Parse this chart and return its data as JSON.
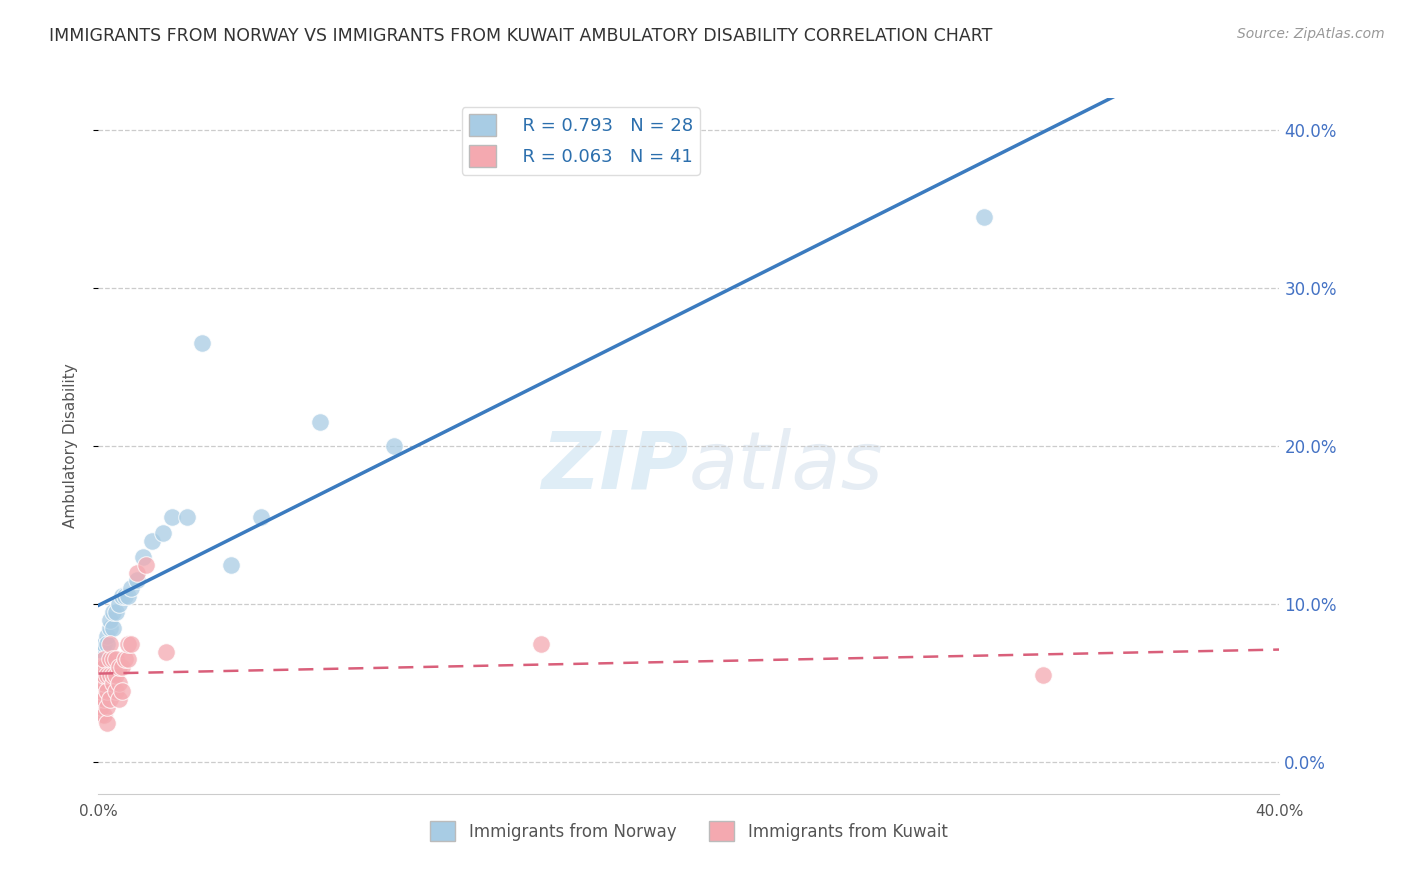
{
  "title": "IMMIGRANTS FROM NORWAY VS IMMIGRANTS FROM KUWAIT AMBULATORY DISABILITY CORRELATION CHART",
  "source": "Source: ZipAtlas.com",
  "xlabel_bottom": [
    "Immigrants from Norway",
    "Immigrants from Kuwait"
  ],
  "ylabel": "Ambulatory Disability",
  "xlim": [
    0.0,
    0.4
  ],
  "ylim": [
    -0.02,
    0.42
  ],
  "norway_R": 0.793,
  "norway_N": 28,
  "kuwait_R": 0.063,
  "kuwait_N": 41,
  "norway_color": "#a8cce4",
  "kuwait_color": "#f4a9b0",
  "norway_line_color": "#3b7bbf",
  "kuwait_line_color": "#d95f7a",
  "background_color": "#ffffff",
  "grid_color": "#cccccc",
  "norway_x": [
    0.001,
    0.001,
    0.002,
    0.002,
    0.003,
    0.003,
    0.004,
    0.004,
    0.005,
    0.005,
    0.006,
    0.007,
    0.008,
    0.009,
    0.01,
    0.011,
    0.013,
    0.015,
    0.018,
    0.022,
    0.025,
    0.03,
    0.035,
    0.045,
    0.055,
    0.075,
    0.1,
    0.3
  ],
  "norway_y": [
    0.055,
    0.065,
    0.07,
    0.075,
    0.08,
    0.075,
    0.085,
    0.09,
    0.085,
    0.095,
    0.095,
    0.1,
    0.105,
    0.105,
    0.105,
    0.11,
    0.115,
    0.13,
    0.14,
    0.145,
    0.155,
    0.155,
    0.265,
    0.125,
    0.155,
    0.215,
    0.2,
    0.345
  ],
  "kuwait_x": [
    0.001,
    0.001,
    0.001,
    0.001,
    0.001,
    0.001,
    0.001,
    0.002,
    0.002,
    0.002,
    0.002,
    0.002,
    0.002,
    0.003,
    0.003,
    0.003,
    0.003,
    0.004,
    0.004,
    0.004,
    0.004,
    0.005,
    0.005,
    0.005,
    0.006,
    0.006,
    0.006,
    0.007,
    0.007,
    0.007,
    0.008,
    0.008,
    0.009,
    0.01,
    0.01,
    0.011,
    0.013,
    0.016,
    0.023,
    0.15,
    0.32
  ],
  "kuwait_y": [
    0.03,
    0.035,
    0.04,
    0.045,
    0.05,
    0.055,
    0.06,
    0.03,
    0.04,
    0.05,
    0.055,
    0.06,
    0.065,
    0.025,
    0.035,
    0.045,
    0.055,
    0.04,
    0.055,
    0.065,
    0.075,
    0.05,
    0.055,
    0.065,
    0.045,
    0.055,
    0.065,
    0.04,
    0.05,
    0.06,
    0.045,
    0.06,
    0.065,
    0.065,
    0.075,
    0.075,
    0.12,
    0.125,
    0.07,
    0.075,
    0.055
  ],
  "yticks": [
    0.0,
    0.1,
    0.2,
    0.3,
    0.4
  ],
  "xtick_left_label": "0.0%",
  "xtick_right_label": "40.0%"
}
